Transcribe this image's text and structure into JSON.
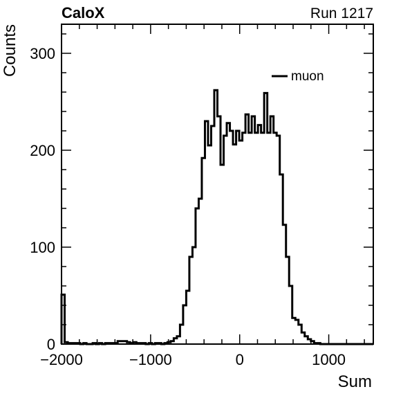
{
  "header": {
    "left": "CaloX",
    "right": "Run 1217"
  },
  "chart_data": {
    "type": "histogram",
    "title": "",
    "xlabel": "Sum",
    "ylabel": "Counts",
    "xlim": [
      -2000,
      1500
    ],
    "ylim": [
      0,
      330
    ],
    "x_major_ticks": [
      -2000,
      -1000,
      0,
      1000
    ],
    "x_tick_labels": [
      "−2000",
      "−1000",
      "0",
      "1000"
    ],
    "y_major_ticks": [
      0,
      100,
      200,
      300
    ],
    "y_tick_labels": [
      "0",
      "100",
      "200",
      "300"
    ],
    "grid": false,
    "legend": {
      "position": "top-right",
      "entries": [
        "muon"
      ]
    },
    "series": [
      {
        "name": "muon",
        "color": "#000000",
        "bin_width": 35,
        "bins": [
          [
            -2000,
            51
          ],
          [
            -1965,
            2
          ],
          [
            -1930,
            1
          ],
          [
            -1895,
            1
          ],
          [
            -1860,
            1
          ],
          [
            -1825,
            1
          ],
          [
            -1790,
            0
          ],
          [
            -1755,
            1
          ],
          [
            -1720,
            0
          ],
          [
            -1685,
            0
          ],
          [
            -1650,
            1
          ],
          [
            -1615,
            0
          ],
          [
            -1580,
            1
          ],
          [
            -1545,
            0
          ],
          [
            -1510,
            1
          ],
          [
            -1475,
            1
          ],
          [
            -1440,
            1
          ],
          [
            -1405,
            1
          ],
          [
            -1370,
            3
          ],
          [
            -1335,
            3
          ],
          [
            -1300,
            3
          ],
          [
            -1265,
            2
          ],
          [
            -1230,
            1
          ],
          [
            -1195,
            2
          ],
          [
            -1160,
            1
          ],
          [
            -1125,
            1
          ],
          [
            -1090,
            1
          ],
          [
            -1055,
            0
          ],
          [
            -1020,
            1
          ],
          [
            -985,
            0
          ],
          [
            -950,
            1
          ],
          [
            -915,
            1
          ],
          [
            -880,
            0
          ],
          [
            -845,
            1
          ],
          [
            -810,
            2
          ],
          [
            -775,
            3
          ],
          [
            -740,
            6
          ],
          [
            -705,
            8
          ],
          [
            -670,
            20
          ],
          [
            -635,
            40
          ],
          [
            -600,
            55
          ],
          [
            -565,
            90
          ],
          [
            -530,
            100
          ],
          [
            -495,
            140
          ],
          [
            -460,
            150
          ],
          [
            -425,
            192
          ],
          [
            -390,
            230
          ],
          [
            -355,
            205
          ],
          [
            -320,
            225
          ],
          [
            -285,
            262
          ],
          [
            -250,
            235
          ],
          [
            -215,
            185
          ],
          [
            -180,
            215
          ],
          [
            -145,
            228
          ],
          [
            -110,
            220
          ],
          [
            -75,
            206
          ],
          [
            -40,
            220
          ],
          [
            -5,
            210
          ],
          [
            30,
            218
          ],
          [
            65,
            237
          ],
          [
            100,
            218
          ],
          [
            135,
            235
          ],
          [
            170,
            218
          ],
          [
            205,
            226
          ],
          [
            240,
            218
          ],
          [
            275,
            259
          ],
          [
            310,
            218
          ],
          [
            345,
            235
          ],
          [
            380,
            218
          ],
          [
            415,
            215
          ],
          [
            450,
            175
          ],
          [
            485,
            123
          ],
          [
            520,
            90
          ],
          [
            555,
            60
          ],
          [
            590,
            27
          ],
          [
            625,
            25
          ],
          [
            660,
            20
          ],
          [
            695,
            12
          ],
          [
            730,
            8
          ],
          [
            765,
            5
          ],
          [
            800,
            3
          ],
          [
            835,
            1
          ],
          [
            870,
            1
          ],
          [
            905,
            0
          ],
          [
            940,
            0
          ],
          [
            975,
            0
          ],
          [
            1010,
            0
          ],
          [
            1045,
            0
          ],
          [
            1080,
            0
          ],
          [
            1115,
            0
          ],
          [
            1150,
            0
          ],
          [
            1185,
            0
          ],
          [
            1220,
            0
          ],
          [
            1255,
            0
          ],
          [
            1290,
            0
          ],
          [
            1325,
            0
          ],
          [
            1360,
            0
          ],
          [
            1395,
            0
          ],
          [
            1430,
            0
          ],
          [
            1465,
            0
          ]
        ]
      }
    ]
  }
}
